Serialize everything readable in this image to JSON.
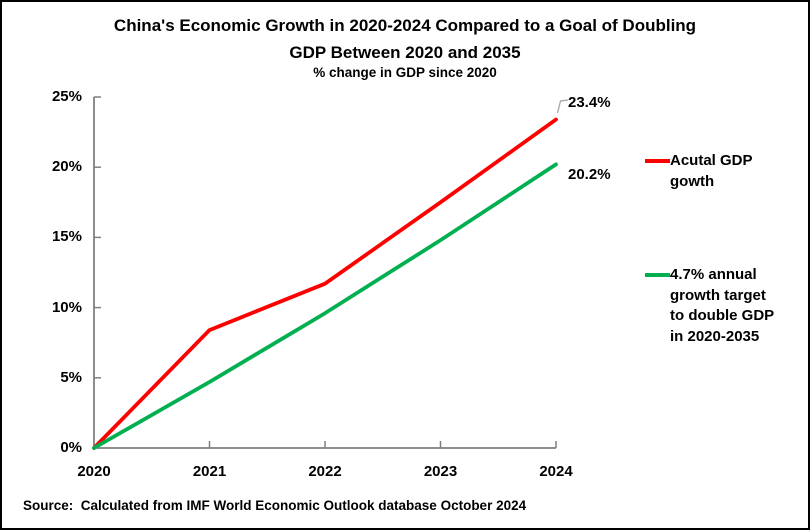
{
  "page": {
    "background": "#FFFFFF",
    "border_color": "#000000"
  },
  "header": {
    "title": "China's Economic Growth in 2020-2024 Compared to a Goal of Doubling\nGDP Between 2020 and 2035",
    "subtitle": "% change in GDP since 2020"
  },
  "footer": {
    "source": "Source:  Calculated from IMF World Economic Outlook database October 2024"
  },
  "colors": {
    "actual_line": "#FF0000",
    "target_line": "#00B050",
    "axis": "#7F7F7F",
    "leader_line": "#A6A6A6",
    "text": "#000000"
  },
  "chart_data": {
    "type": "line",
    "title": "China's Economic Growth in 2020-2024 Compared to a Goal of Doubling GDP Between 2020 and 2035",
    "subtitle": "% change in GDP since 2020",
    "x": [
      2020,
      2021,
      2022,
      2023,
      2024
    ],
    "x_tick_labels": [
      "2020",
      "2021",
      "2022",
      "2023",
      "2024"
    ],
    "y_ticks": [
      0,
      5,
      10,
      15,
      20,
      25
    ],
    "y_tick_labels": [
      "0%",
      "5%",
      "10%",
      "15%",
      "20%",
      "25%"
    ],
    "ylim": [
      0,
      25
    ],
    "grid": false,
    "legend_position": "right",
    "series": [
      {
        "key": "actual",
        "name": "Acutal GDP gowth",
        "color": "#FF0000",
        "values": [
          0,
          8.4,
          11.7,
          17.5,
          23.4
        ],
        "end_label": "23.4%"
      },
      {
        "key": "target",
        "name": "4.7% annual growth target to double GDP in 2020-2035",
        "color": "#00B050",
        "values": [
          0,
          4.7,
          9.6,
          14.8,
          20.2
        ],
        "end_label": "20.2%"
      }
    ],
    "legend": [
      {
        "key": "actual",
        "label": "Acutal GDP\ngowth",
        "color": "#FF0000"
      },
      {
        "key": "target",
        "label": "4.7% annual\ngrowth target\nto double GDP\nin 2020-2035",
        "color": "#00B050"
      }
    ]
  }
}
